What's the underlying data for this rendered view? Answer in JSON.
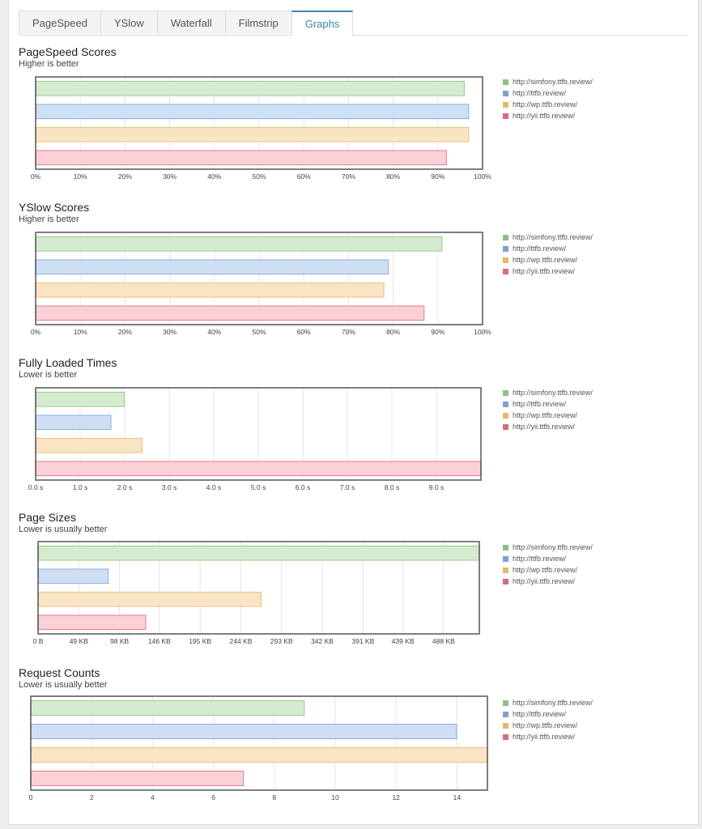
{
  "tabs": [
    {
      "label": "PageSpeed",
      "active": false
    },
    {
      "label": "YSlow",
      "active": false
    },
    {
      "label": "Waterfall",
      "active": false
    },
    {
      "label": "Filmstrip",
      "active": false
    },
    {
      "label": "Graphs",
      "active": true
    }
  ],
  "colors": {
    "series_fill": [
      "#d5ebcf",
      "#cfdff3",
      "#f9e4c3",
      "#fbd0d6"
    ],
    "series_stroke": [
      "#9ccc8c",
      "#8aaee0",
      "#e6c27e",
      "#e0808f"
    ],
    "legend_swatch": [
      "#8fbe84",
      "#7f9fd0",
      "#e3b86c",
      "#d96a7d"
    ]
  },
  "chart_data": [
    {
      "type": "bar",
      "orientation": "horizontal",
      "title": "PageSpeed Scores",
      "subtitle": "Higher is better",
      "series_names": [
        "http://simfony.ttfb.review/",
        "http://ttfb.review/",
        "http://wp.ttfb.review/",
        "http://yii.ttfb.review/"
      ],
      "values": [
        96,
        97,
        97,
        92
      ],
      "xlim": [
        0,
        100
      ],
      "ticks": [
        0,
        10,
        20,
        30,
        40,
        50,
        60,
        70,
        80,
        90,
        100
      ],
      "tick_labels": [
        "0%",
        "10%",
        "20%",
        "30%",
        "40%",
        "50%",
        "60%",
        "70%",
        "80%",
        "90%",
        "100%"
      ],
      "legend": "top-right"
    },
    {
      "type": "bar",
      "orientation": "horizontal",
      "title": "YSlow Scores",
      "subtitle": "Higher is better",
      "series_names": [
        "http://simfony.ttfb.review/",
        "http://ttfb.review/",
        "http://wp.ttfb.review/",
        "http://yii.ttfb.review/"
      ],
      "values": [
        91,
        79,
        78,
        87
      ],
      "xlim": [
        0,
        100
      ],
      "ticks": [
        0,
        10,
        20,
        30,
        40,
        50,
        60,
        70,
        80,
        90,
        100
      ],
      "tick_labels": [
        "0%",
        "10%",
        "20%",
        "30%",
        "40%",
        "50%",
        "60%",
        "70%",
        "80%",
        "90%",
        "100%"
      ],
      "legend": "top-right"
    },
    {
      "type": "bar",
      "orientation": "horizontal",
      "title": "Fully Loaded Times",
      "subtitle": "Lower is better",
      "series_names": [
        "http://simfony.ttfb.review/",
        "http://ttfb.review/",
        "http://wp.ttfb.review/",
        "http://yii.ttfb.review/"
      ],
      "values": [
        2.0,
        1.7,
        2.4,
        10.0
      ],
      "xlim": [
        0,
        10
      ],
      "ticks": [
        0,
        1,
        2,
        3,
        4,
        5,
        6,
        7,
        8,
        9
      ],
      "tick_labels": [
        "0.0 s",
        "1.0 s",
        "2.0 s",
        "3.0 s",
        "4.0 s",
        "5.0 s",
        "6.0 s",
        "7.0 s",
        "8.0 s",
        "9.0 s"
      ],
      "legend": "top-right"
    },
    {
      "type": "bar",
      "orientation": "horizontal",
      "title": "Page Sizes",
      "subtitle": "Lower is usually better",
      "series_names": [
        "http://simfony.ttfb.review/",
        "http://ttfb.review/",
        "http://wp.ttfb.review/",
        "http://yii.ttfb.review/"
      ],
      "values": [
        531,
        85,
        269,
        130
      ],
      "xlim": [
        0,
        531
      ],
      "ticks": [
        0,
        49,
        98,
        146,
        195,
        244,
        293,
        342,
        391,
        439,
        488
      ],
      "tick_labels": [
        "0 B",
        "49 KB",
        "98 KB",
        "146 KB",
        "195 KB",
        "244 KB",
        "293 KB",
        "342 KB",
        "391 KB",
        "439 KB",
        "488 KB"
      ],
      "legend": "top-right"
    },
    {
      "type": "bar",
      "orientation": "horizontal",
      "title": "Request Counts",
      "subtitle": "Lower is usually better",
      "series_names": [
        "http://simfony.ttfb.review/",
        "http://ttfb.review/",
        "http://wp.ttfb.review/",
        "http://yii.ttfb.review/"
      ],
      "values": [
        9,
        14,
        15,
        7
      ],
      "xlim": [
        0,
        15
      ],
      "ticks": [
        0,
        2,
        4,
        6,
        8,
        10,
        12,
        14
      ],
      "tick_labels": [
        "0",
        "2",
        "4",
        "6",
        "8",
        "10",
        "12",
        "14"
      ],
      "legend": "top-right"
    }
  ]
}
